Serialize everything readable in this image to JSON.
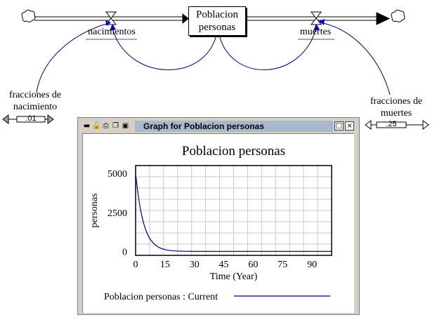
{
  "model": {
    "stock": {
      "line1": "Poblacion",
      "line2": "personas"
    },
    "flows": {
      "inflow": "nacimientos",
      "outflow": "muertes"
    },
    "params": {
      "birth": {
        "line1": "fracciones de",
        "line2": "nacimiento",
        "value": ".01"
      },
      "death": {
        "line1": "fracciones de",
        "line2": "muertes",
        "value": ".25"
      }
    }
  },
  "graph_window": {
    "title": "Graph for Poblacion personas",
    "minimize_glyph": "□",
    "close_glyph": "×",
    "toolbar_icons": [
      "minimize-icon",
      "lock-icon",
      "print-icon",
      "copy-icon",
      "save-icon"
    ]
  },
  "chart_data": {
    "type": "line",
    "title": "Poblacion personas",
    "xlabel": "Time (Year)",
    "ylabel": "personas",
    "xlim": [
      0,
      100
    ],
    "ylim": [
      -250,
      5500
    ],
    "x_ticks": [
      "0",
      "15",
      "30",
      "45",
      "60",
      "75",
      "90"
    ],
    "x_tick_values": [
      0,
      15,
      30,
      45,
      60,
      75,
      90
    ],
    "y_ticks": [
      "5000",
      "2500",
      "0"
    ],
    "y_tick_values": [
      5000,
      2500,
      0
    ],
    "grid": true,
    "color": "#00007f",
    "series": [
      {
        "name": "Poblacion personas : Current",
        "x": [
          0,
          1,
          2,
          3,
          4,
          5,
          6,
          7,
          8,
          10,
          12,
          14,
          16,
          18,
          20,
          25,
          30,
          40,
          60,
          80,
          100
        ],
        "y": [
          5000,
          3900,
          3040,
          2370,
          1850,
          1440,
          1125,
          877,
          684,
          416,
          253,
          154,
          94,
          57,
          35,
          11,
          3,
          0,
          0,
          0,
          0
        ]
      }
    ],
    "legend": "bottom"
  }
}
